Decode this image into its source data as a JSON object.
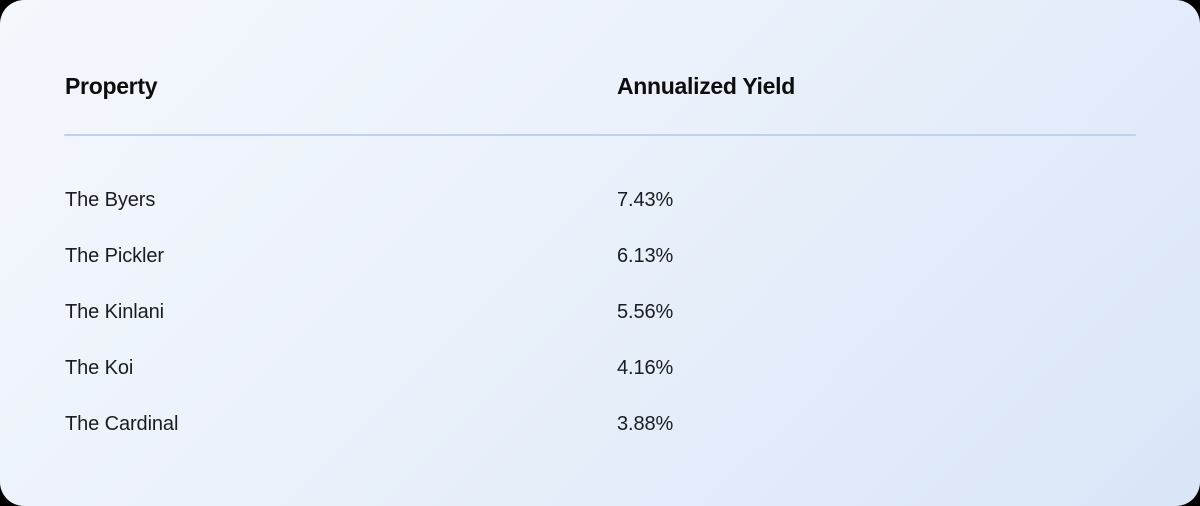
{
  "card": {
    "columns": [
      {
        "label": "Property"
      },
      {
        "label": "Annualized Yield"
      }
    ],
    "rows": [
      {
        "property": "The Byers",
        "yield": "7.43%"
      },
      {
        "property": "The Pickler",
        "yield": "6.13%"
      },
      {
        "property": "The Kinlani",
        "yield": "5.56%"
      },
      {
        "property": "The Koi",
        "yield": "4.16%"
      },
      {
        "property": "The Cardinal",
        "yield": "3.88%"
      }
    ]
  },
  "colors": {
    "page_background": "#000000",
    "card_gradient_start": "#f4f7fc",
    "card_gradient_end": "#d9e5f8",
    "divider": "#bdd2ee",
    "header_text": "#0d0d0d",
    "row_text": "#1a1c20"
  },
  "chart_data": {
    "type": "table",
    "title": "",
    "columns": [
      "Property",
      "Annualized Yield"
    ],
    "rows": [
      [
        "The Byers",
        "7.43%"
      ],
      [
        "The Pickler",
        "6.13%"
      ],
      [
        "The Kinlani",
        "5.56%"
      ],
      [
        "The Koi",
        "4.16%"
      ],
      [
        "The Cardinal",
        "3.88%"
      ]
    ],
    "categories": [
      "The Byers",
      "The Pickler",
      "The Kinlani",
      "The Koi",
      "The Cardinal"
    ],
    "values": [
      7.43,
      6.13,
      5.56,
      4.16,
      3.88
    ],
    "value_unit": "%"
  }
}
